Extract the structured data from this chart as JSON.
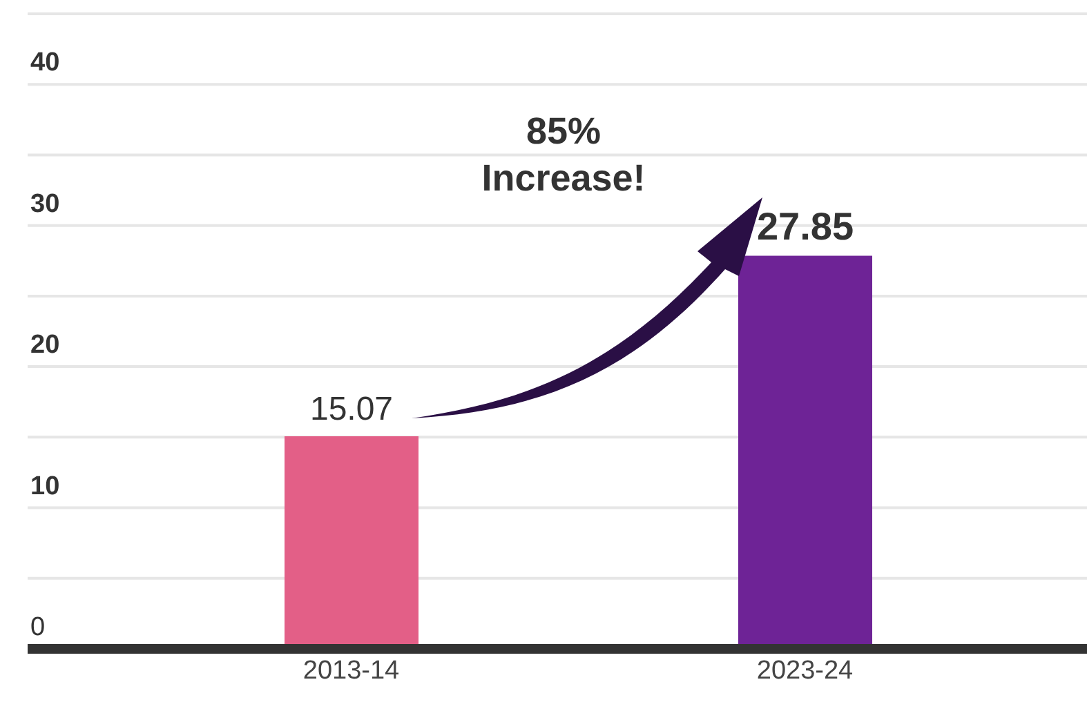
{
  "chart_data": {
    "type": "bar",
    "categories": [
      "2013-14",
      "2023-24"
    ],
    "values": [
      15.07,
      27.85
    ],
    "colors": [
      "#e35f87",
      "#6e2396"
    ],
    "ylim": [
      0,
      45
    ],
    "yticks": [
      0,
      {
        "value": 5,
        "label": null
      },
      10,
      {
        "value": 15,
        "label": null
      },
      20,
      {
        "value": 25,
        "label": null
      },
      30,
      {
        "value": 35,
        "label": null
      },
      40,
      {
        "value": 45,
        "label": null
      }
    ],
    "grid": "y",
    "data_labels": true,
    "annotations": [
      "85%\nIncrease!"
    ]
  }
}
